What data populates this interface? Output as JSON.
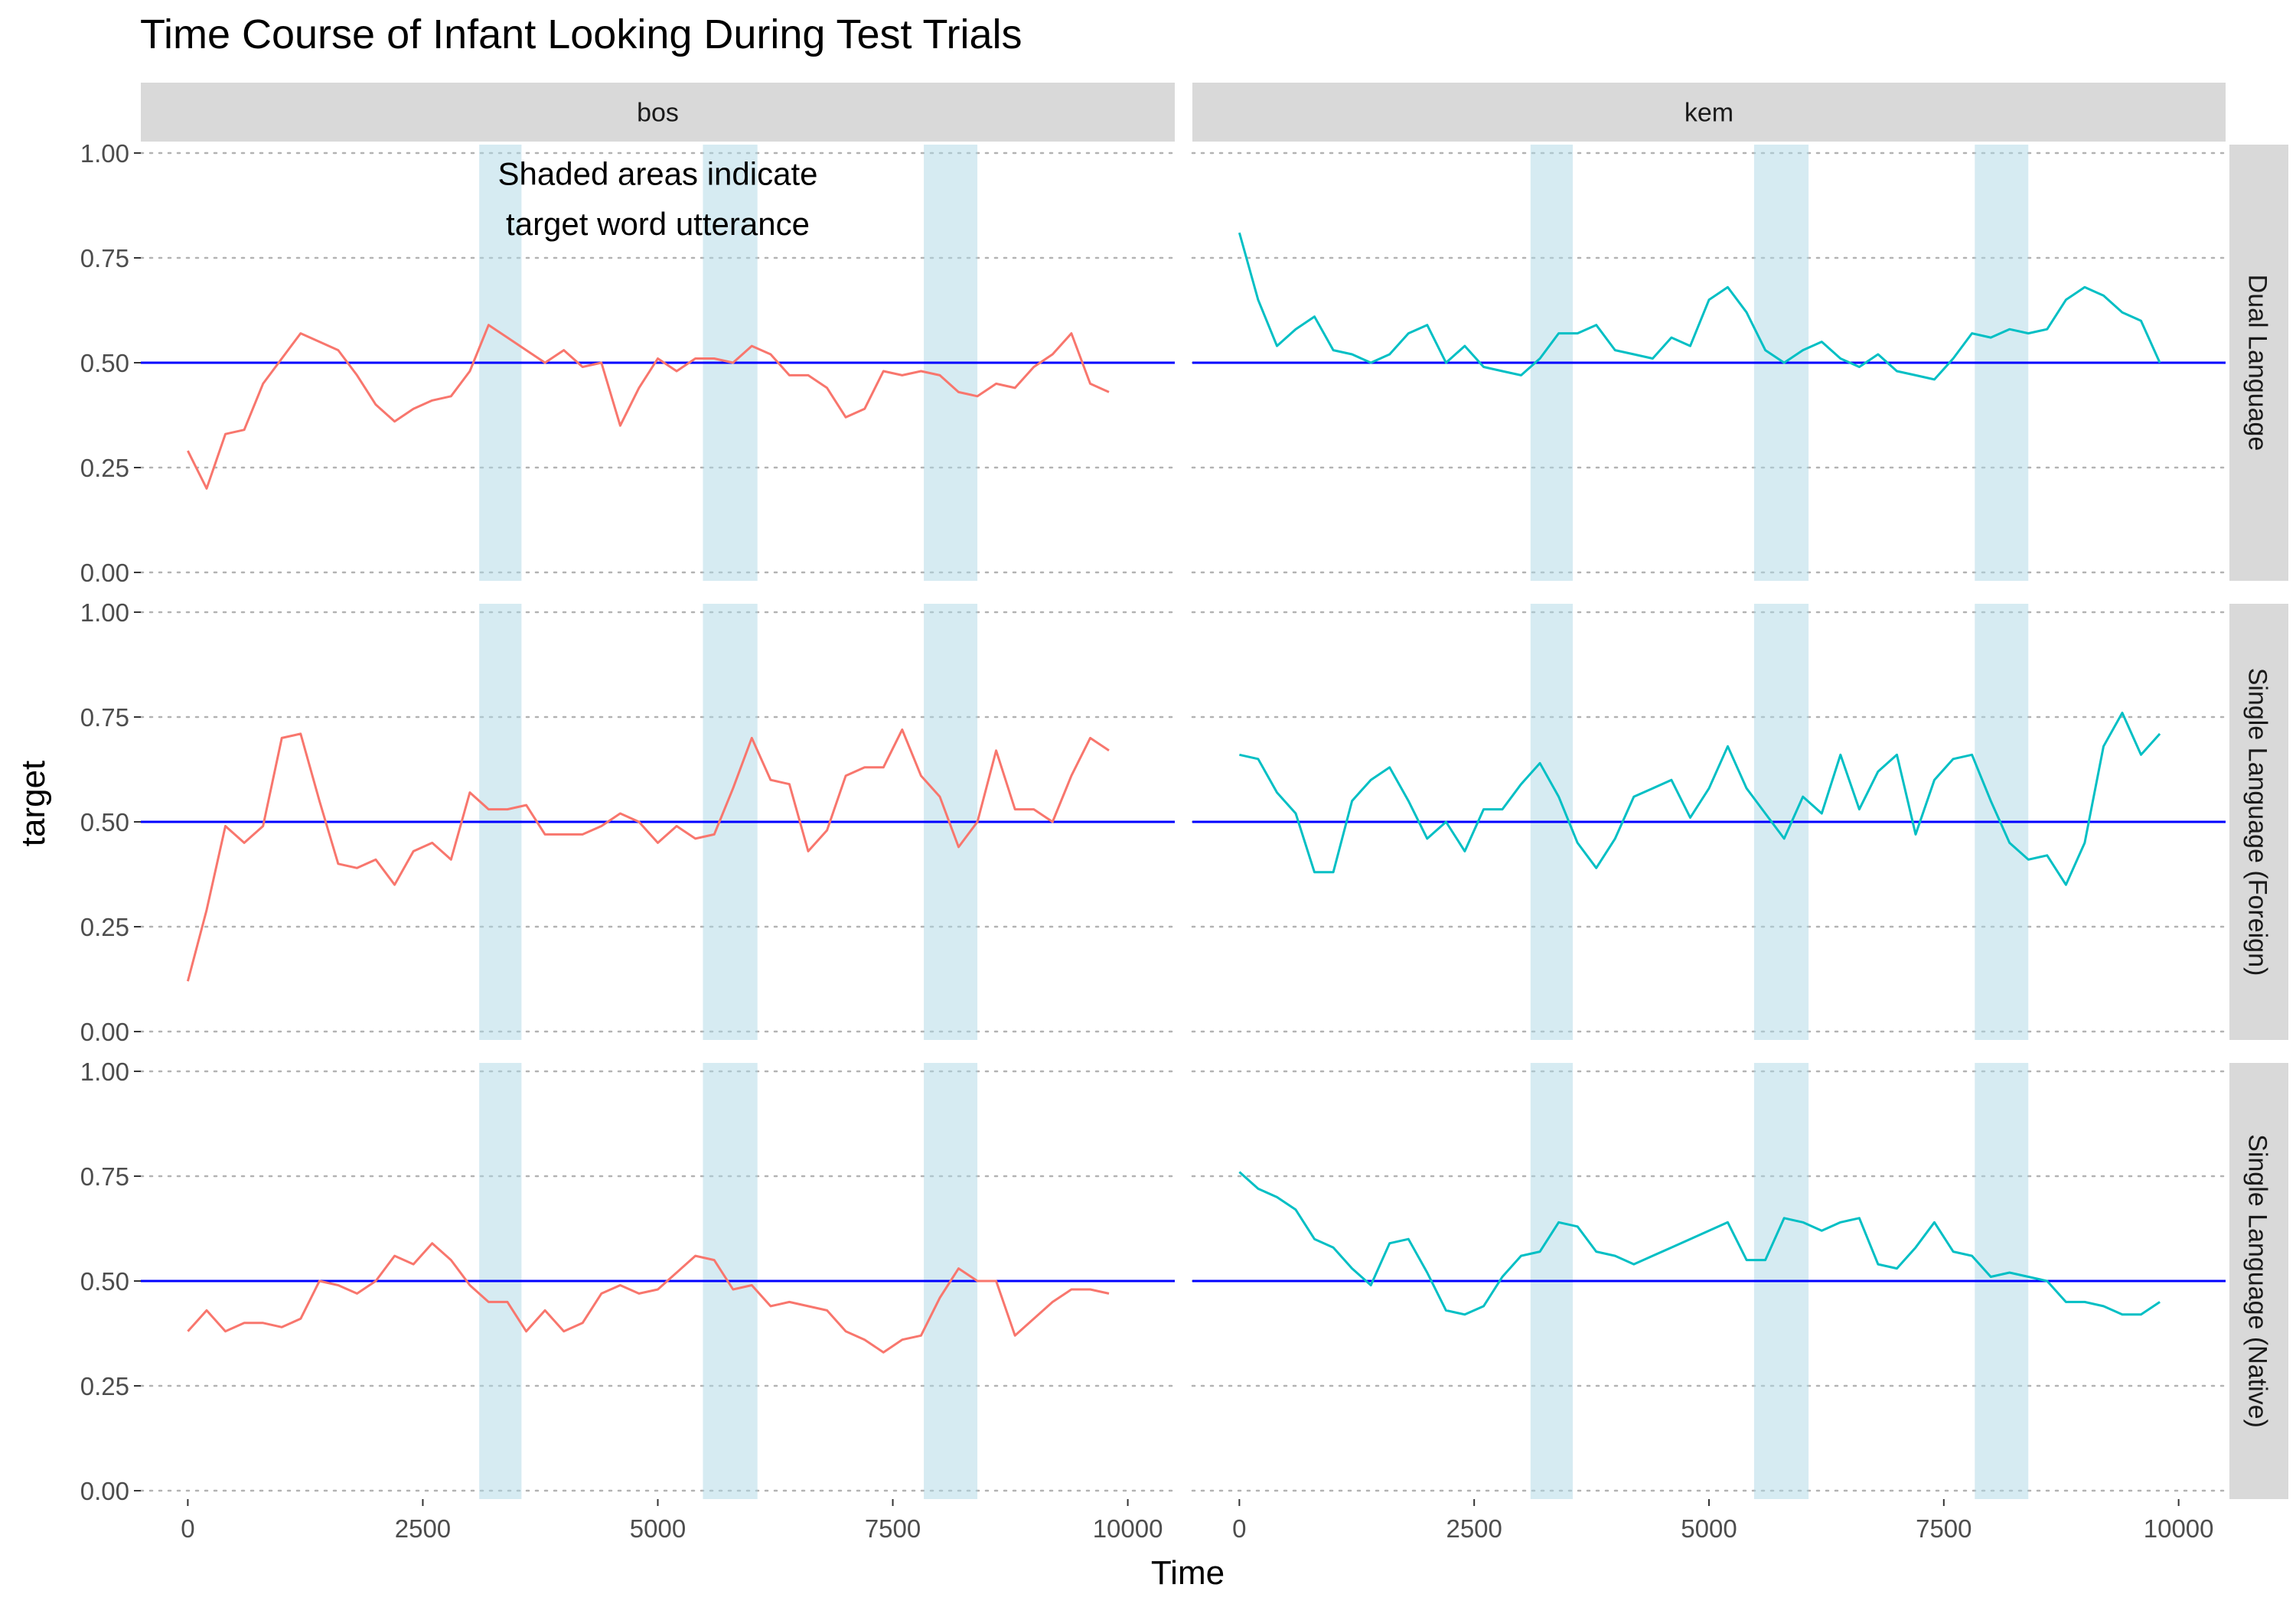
{
  "chart_data": {
    "type": "line",
    "title": "Time Course of Infant Looking During Test Trials",
    "xlabel": "Time",
    "ylabel": "target",
    "xlim": [
      -500,
      10500
    ],
    "ylim": [
      -0.02,
      1.02
    ],
    "x_ticks": [
      0,
      2500,
      5000,
      7500,
      10000
    ],
    "y_ticks": [
      0.0,
      0.25,
      0.5,
      0.75,
      1.0
    ],
    "y_tick_labels": [
      "0.00",
      "0.25",
      "0.50",
      "0.75",
      "1.00"
    ],
    "columns": [
      "bos",
      "kem"
    ],
    "rows": [
      "Dual Language",
      "Single Language (Foreign)",
      "Single Language (Native)"
    ],
    "grid": "horizontal-dotted",
    "reference_line": {
      "y": 0.5,
      "color": "#0000ff"
    },
    "shaded_intervals": [
      [
        3100,
        3550
      ],
      [
        5480,
        6060
      ],
      [
        7830,
        8400
      ]
    ],
    "shade_color": "#add8e6",
    "annotation": {
      "lines": [
        "Shaded areas indicate",
        "target word utterance"
      ],
      "panel": "bos|Dual Language",
      "x": 5000,
      "y": [
        0.95,
        0.83
      ]
    },
    "colors": {
      "bos": "#f8766d",
      "kem": "#00bfc4"
    },
    "x": [
      0,
      200,
      400,
      600,
      800,
      1000,
      1200,
      1400,
      1600,
      1800,
      2000,
      2200,
      2400,
      2600,
      2800,
      3000,
      3200,
      3400,
      3600,
      3800,
      4000,
      4200,
      4400,
      4600,
      4800,
      5000,
      5200,
      5400,
      5600,
      5800,
      6000,
      6200,
      6400,
      6600,
      6800,
      7000,
      7200,
      7400,
      7600,
      7800,
      8000,
      8200,
      8400,
      8600,
      8800,
      9000,
      9200,
      9400,
      9600,
      9800
    ],
    "panels": [
      {
        "column": "bos",
        "row": "Dual Language",
        "values": [
          0.29,
          0.2,
          0.33,
          0.34,
          0.45,
          0.51,
          0.57,
          0.55,
          0.53,
          0.47,
          0.4,
          0.36,
          0.39,
          0.41,
          0.42,
          0.48,
          0.59,
          0.56,
          0.53,
          0.5,
          0.53,
          0.49,
          0.5,
          0.35,
          0.44,
          0.51,
          0.48,
          0.51,
          0.51,
          0.5,
          0.54,
          0.52,
          0.47,
          0.47,
          0.44,
          0.37,
          0.39,
          0.48,
          0.47,
          0.48,
          0.47,
          0.43,
          0.42,
          0.45,
          0.44,
          0.49,
          0.52,
          0.57,
          0.45,
          0.43
        ]
      },
      {
        "column": "kem",
        "row": "Dual Language",
        "values": [
          0.81,
          0.65,
          0.54,
          0.58,
          0.61,
          0.53,
          0.52,
          0.5,
          0.52,
          0.57,
          0.59,
          0.5,
          0.54,
          0.49,
          0.48,
          0.47,
          0.51,
          0.57,
          0.57,
          0.59,
          0.53,
          0.52,
          0.51,
          0.56,
          0.54,
          0.65,
          0.68,
          0.62,
          0.53,
          0.5,
          0.53,
          0.55,
          0.51,
          0.49,
          0.52,
          0.48,
          0.47,
          0.46,
          0.51,
          0.57,
          0.56,
          0.58,
          0.57,
          0.58,
          0.65,
          0.68,
          0.66,
          0.62,
          0.6,
          0.5
        ]
      },
      {
        "column": "bos",
        "row": "Single Language (Foreign)",
        "values": [
          0.12,
          0.29,
          0.49,
          0.45,
          0.49,
          0.7,
          0.71,
          0.55,
          0.4,
          0.39,
          0.41,
          0.35,
          0.43,
          0.45,
          0.41,
          0.57,
          0.53,
          0.53,
          0.54,
          0.47,
          0.47,
          0.47,
          0.49,
          0.52,
          0.5,
          0.45,
          0.49,
          0.46,
          0.47,
          0.58,
          0.7,
          0.6,
          0.59,
          0.43,
          0.48,
          0.61,
          0.63,
          0.63,
          0.72,
          0.61,
          0.56,
          0.44,
          0.5,
          0.67,
          0.53,
          0.53,
          0.5,
          0.61,
          0.7,
          0.67
        ]
      },
      {
        "column": "kem",
        "row": "Single Language (Foreign)",
        "values": [
          0.66,
          0.65,
          0.57,
          0.52,
          0.38,
          0.38,
          0.55,
          0.6,
          0.63,
          0.55,
          0.46,
          0.5,
          0.43,
          0.53,
          0.53,
          0.59,
          0.64,
          0.56,
          0.45,
          0.39,
          0.46,
          0.56,
          0.58,
          0.6,
          0.51,
          0.58,
          0.68,
          0.58,
          0.52,
          0.46,
          0.56,
          0.52,
          0.66,
          0.53,
          0.62,
          0.66,
          0.47,
          0.6,
          0.65,
          0.66,
          0.55,
          0.45,
          0.41,
          0.42,
          0.35,
          0.45,
          0.68,
          0.76,
          0.66,
          0.71
        ]
      },
      {
        "column": "bos",
        "row": "Single Language (Native)",
        "values": [
          0.38,
          0.43,
          0.38,
          0.4,
          0.4,
          0.39,
          0.41,
          0.5,
          0.49,
          0.47,
          0.5,
          0.56,
          0.54,
          0.59,
          0.55,
          0.49,
          0.45,
          0.45,
          0.38,
          0.43,
          0.38,
          0.4,
          0.47,
          0.49,
          0.47,
          0.48,
          0.52,
          0.56,
          0.55,
          0.48,
          0.49,
          0.44,
          0.45,
          0.44,
          0.43,
          0.38,
          0.36,
          0.33,
          0.36,
          0.37,
          0.46,
          0.53,
          0.5,
          0.5,
          0.37,
          0.41,
          0.45,
          0.48,
          0.48,
          0.47
        ]
      },
      {
        "column": "kem",
        "row": "Single Language (Native)",
        "values": [
          0.76,
          0.72,
          0.7,
          0.67,
          0.6,
          0.58,
          0.53,
          0.49,
          0.59,
          0.6,
          0.52,
          0.43,
          0.42,
          0.44,
          0.51,
          0.56,
          0.57,
          0.64,
          0.63,
          0.57,
          0.56,
          0.54,
          0.56,
          0.58,
          0.6,
          0.62,
          0.64,
          0.55,
          0.55,
          0.65,
          0.64,
          0.62,
          0.64,
          0.65,
          0.54,
          0.53,
          0.58,
          0.64,
          0.57,
          0.56,
          0.51,
          0.52,
          0.51,
          0.5,
          0.45,
          0.45,
          0.44,
          0.42,
          0.42,
          0.45
        ]
      }
    ]
  }
}
